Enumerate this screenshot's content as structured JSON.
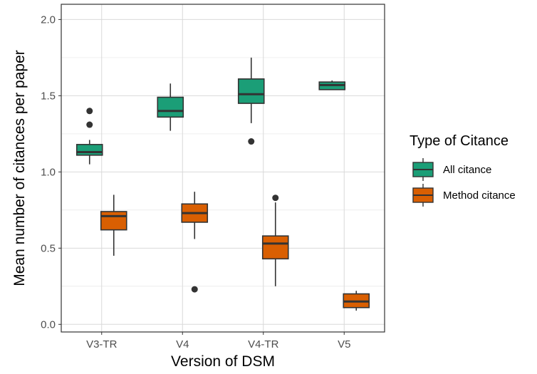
{
  "chart_data": {
    "type": "boxplot",
    "xlabel": "Version of DSM",
    "ylabel": "Mean number of citances per paper",
    "categories": [
      "V3-TR",
      "V4",
      "V4-TR",
      "V5"
    ],
    "ylim": [
      -0.05,
      2.1
    ],
    "yticks": [
      0.0,
      0.5,
      1.0,
      1.5,
      2.0
    ],
    "ytick_labels": [
      "0.0",
      "0.5",
      "1.0",
      "1.5",
      "2.0"
    ],
    "grid": true,
    "legend": {
      "title": "Type of Citance",
      "position": "right",
      "entries": [
        "All citance",
        "Method citance"
      ]
    },
    "series": [
      {
        "name": "All citance",
        "color": "#1b9e77",
        "boxes": [
          {
            "category": "V3-TR",
            "whisker_low": 1.05,
            "q1": 1.11,
            "median": 1.13,
            "q3": 1.18,
            "whisker_high": 1.21,
            "outliers": [
              1.31,
              1.4
            ]
          },
          {
            "category": "V4",
            "whisker_low": 1.27,
            "q1": 1.36,
            "median": 1.4,
            "q3": 1.49,
            "whisker_high": 1.58,
            "outliers": []
          },
          {
            "category": "V4-TR",
            "whisker_low": 1.32,
            "q1": 1.45,
            "median": 1.51,
            "q3": 1.61,
            "whisker_high": 1.75,
            "outliers": [
              1.2
            ]
          },
          {
            "category": "V5",
            "whisker_low": 1.54,
            "q1": 1.54,
            "median": 1.57,
            "q3": 1.59,
            "whisker_high": 1.6,
            "outliers": []
          }
        ]
      },
      {
        "name": "Method citance",
        "color": "#d95f02",
        "boxes": [
          {
            "category": "V3-TR",
            "whisker_low": 0.45,
            "q1": 0.62,
            "median": 0.71,
            "q3": 0.74,
            "whisker_high": 0.85,
            "outliers": []
          },
          {
            "category": "V4",
            "whisker_low": 0.56,
            "q1": 0.67,
            "median": 0.73,
            "q3": 0.79,
            "whisker_high": 0.87,
            "outliers": [
              0.23
            ]
          },
          {
            "category": "V4-TR",
            "whisker_low": 0.25,
            "q1": 0.43,
            "median": 0.53,
            "q3": 0.58,
            "whisker_high": 0.8,
            "outliers": [
              0.83
            ]
          },
          {
            "category": "V5",
            "whisker_low": 0.09,
            "q1": 0.11,
            "median": 0.15,
            "q3": 0.2,
            "whisker_high": 0.22,
            "outliers": []
          }
        ]
      }
    ]
  }
}
